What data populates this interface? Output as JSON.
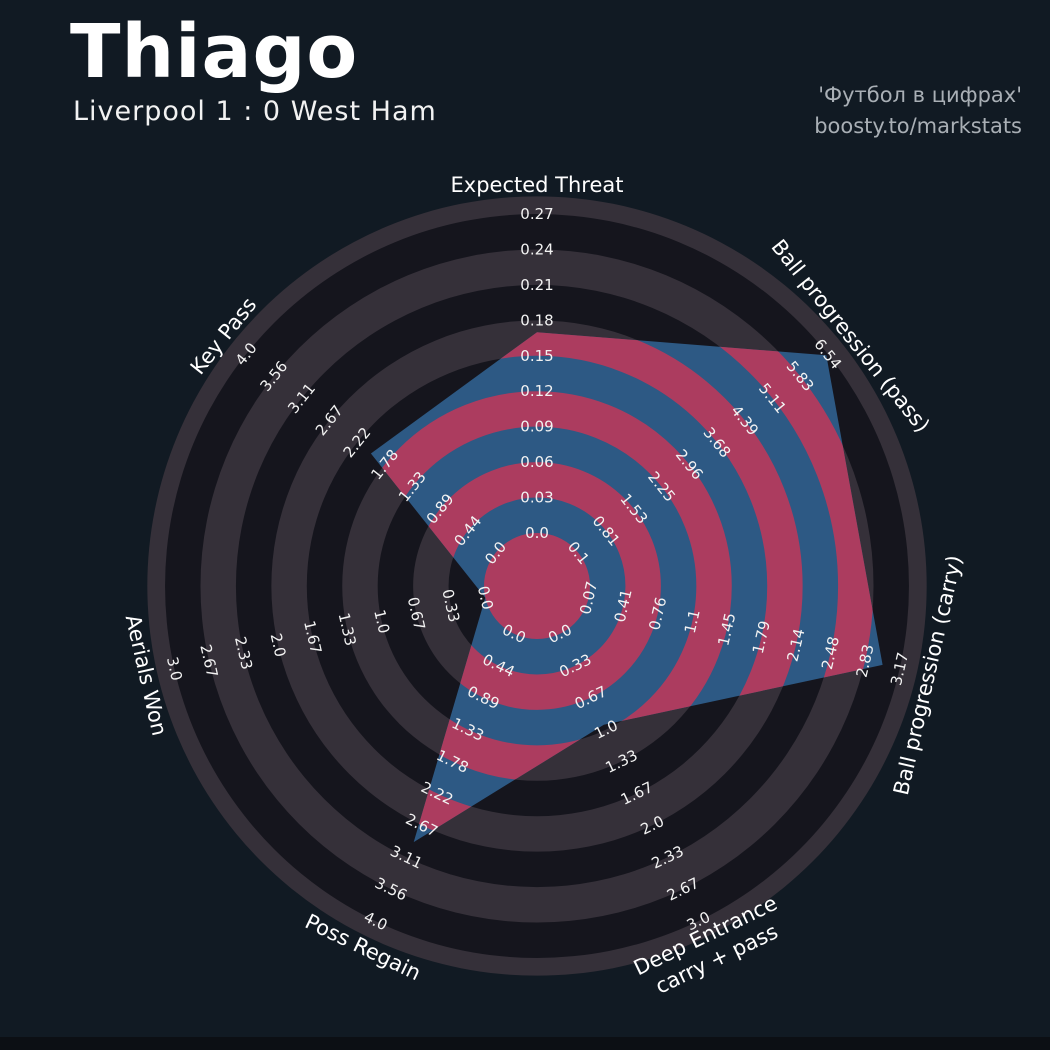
{
  "header": {
    "title": "Thiago",
    "subtitle": "Liverpool 1 : 0 West Ham",
    "credits": [
      "'Футбол в цифрах'",
      "boosty.to/markstats"
    ]
  },
  "colors": {
    "background": "#111A23",
    "ring_dark": "#15151D",
    "ring_gray": "#353039",
    "radar_fill": "#2D5984",
    "ring_accent": "#AC3C5F",
    "tick_text": "#F2F2F2",
    "param_text": "#FFFFFF",
    "title_text": "#FFFFFF",
    "subtitle_text": "#F2F2F2",
    "credit_text": "#A9AFB5",
    "footer_bar": "#0C0F14"
  },
  "chart_data": {
    "type": "radar",
    "title": "Thiago",
    "subtitle": "Liverpool 1 : 0 West Ham",
    "legend_position": "none",
    "grid": "concentric-rings",
    "num_rings": 9,
    "params": [
      {
        "label": "Expected Threat",
        "label_lines": [
          "Expected Threat"
        ],
        "min": 0.0,
        "max": 0.27,
        "value": 0.17,
        "ticks": [
          "0.0",
          "0.03",
          "0.06",
          "0.09",
          "0.12",
          "0.15",
          "0.18",
          "0.21",
          "0.24",
          "0.27"
        ]
      },
      {
        "label": "Ball progression (pass)",
        "label_lines": [
          "Ball progression (pass)"
        ],
        "min": 0.1,
        "max": 6.54,
        "value": 6.5,
        "ticks": [
          "0.1",
          "0.81",
          "1.53",
          "2.25",
          "2.96",
          "3.68",
          "4.39",
          "5.11",
          "5.83",
          "6.54"
        ]
      },
      {
        "label": "Ball progression (carry)",
        "label_lines": [
          "Ball progression (carry)"
        ],
        "min": 0.07,
        "max": 3.17,
        "value": 3.0,
        "ticks": [
          "0.07",
          "0.41",
          "0.76",
          "1.1",
          "1.45",
          "1.79",
          "2.14",
          "2.48",
          "2.83",
          "3.17"
        ]
      },
      {
        "label": "Deep Entrance carry + pass",
        "label_lines": [
          "Deep Entrance",
          "carry + pass"
        ],
        "min": 0.0,
        "max": 3.0,
        "value": 0.95,
        "ticks": [
          "0.0",
          "0.33",
          "0.67",
          "1.0",
          "1.33",
          "1.67",
          "2.0",
          "2.33",
          "2.67",
          "3.0"
        ]
      },
      {
        "label": "Poss Regain",
        "label_lines": [
          "Poss Regain"
        ],
        "min": 0.0,
        "max": 4.0,
        "value": 2.9,
        "ticks": [
          "0.0",
          "0.44",
          "0.89",
          "1.33",
          "1.78",
          "2.22",
          "2.67",
          "3.11",
          "3.56",
          "4.0"
        ]
      },
      {
        "label": "Aerials Won",
        "label_lines": [
          "Aerials Won"
        ],
        "min": 0.0,
        "max": 3.0,
        "value": 0.0,
        "ticks": [
          "0.0",
          "0.33",
          "0.67",
          "1.0",
          "1.33",
          "1.67",
          "2.0",
          "2.33",
          "2.67",
          "3.0"
        ]
      },
      {
        "label": "Key Pass",
        "label_lines": [
          "Key Pass"
        ],
        "min": 0.0,
        "max": 4.0,
        "value": 2.0,
        "ticks": [
          "0.0",
          "0.44",
          "0.89",
          "1.33",
          "1.78",
          "2.22",
          "2.67",
          "3.11",
          "3.56",
          "4.0"
        ]
      }
    ]
  }
}
